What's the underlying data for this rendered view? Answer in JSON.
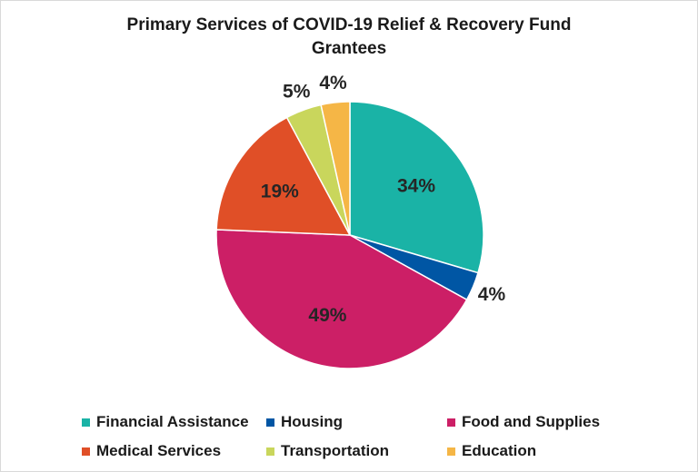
{
  "chart_data": {
    "type": "pie",
    "title_lines": [
      "Primary Services of COVID-19 Relief & Recovery Fund",
      "Grantees"
    ],
    "categories": [
      "Financial Assistance",
      "Housing",
      "Food and Supplies",
      "Medical Services",
      "Transportation",
      "Education"
    ],
    "values": [
      34,
      4,
      49,
      19,
      5,
      4
    ],
    "labels": [
      "34%",
      "4%",
      "49%",
      "19%",
      "5%",
      "4%"
    ],
    "colors": [
      "#1ab3a6",
      "#0056a4",
      "#cc1f66",
      "#e04f27",
      "#c9d65c",
      "#f5b646"
    ],
    "legend_position": "bottom"
  }
}
